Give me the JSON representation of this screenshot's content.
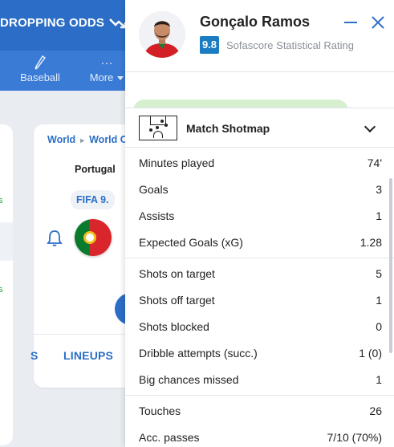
{
  "topbar": {
    "dropping_odds": "DROPPING ODDS"
  },
  "nav": [
    {
      "label": "Baseball",
      "icon": "baseball-bat-icon"
    },
    {
      "label": "More",
      "icon": "more-dots-icon"
    }
  ],
  "event_card": {
    "breadcrumb": [
      "World",
      "World Cu"
    ],
    "team": "Portugal",
    "ranking": "FIFA 9.",
    "tab_lineups": "LINEUPS",
    "tab_partial": "S"
  },
  "player": {
    "name": "Gonçalo Ramos",
    "rating": "9.8",
    "rating_label": "Sofascore Statistical Rating"
  },
  "shotmap": {
    "title": "Match Shotmap"
  },
  "stats_groups": [
    [
      {
        "label": "Minutes played",
        "value": "74'"
      },
      {
        "label": "Goals",
        "value": "3"
      },
      {
        "label": "Assists",
        "value": "1"
      },
      {
        "label": "Expected Goals (xG)",
        "value": "1.28"
      }
    ],
    [
      {
        "label": "Shots on target",
        "value": "5"
      },
      {
        "label": "Shots off target",
        "value": "1"
      },
      {
        "label": "Shots blocked",
        "value": "0"
      },
      {
        "label": "Dribble attempts (succ.)",
        "value": "1 (0)"
      },
      {
        "label": "Big chances missed",
        "value": "1"
      }
    ],
    [
      {
        "label": "Touches",
        "value": "26"
      },
      {
        "label": "Acc. passes",
        "value": "7/10 (70%)"
      }
    ]
  ],
  "colors": {
    "brand_blue": "#2c6ec7",
    "rating_bg": "#1a7cc1",
    "goal_green": "#21a038"
  }
}
